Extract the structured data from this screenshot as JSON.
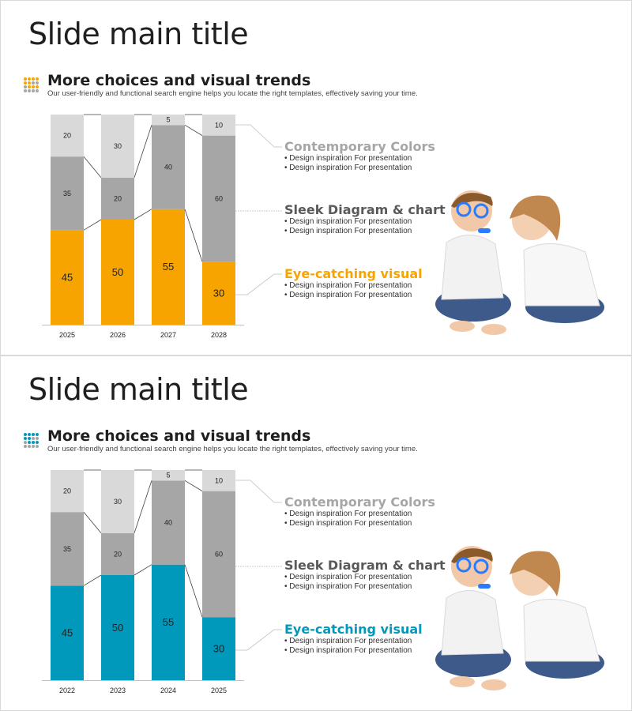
{
  "slides": [
    {
      "title": "Slide main title",
      "heading": "More choices and visual trends",
      "description": "Our user-friendly and functional search engine helps you locate the right templates, effectively saving your time.",
      "accent_color": "#f7a400",
      "dot_colors": [
        "#f7a400",
        "#f7a400",
        "#f7a400",
        "#f7a400",
        "#f7a400",
        "#f7a400",
        "#a6a6a6",
        "#a6a6a6",
        "#a6a6a6",
        "#f7a400",
        "#f7a400",
        "#f7a400",
        "#a6a6a6",
        "#a6a6a6",
        "#a6a6a6",
        "#a6a6a6"
      ],
      "categories": [
        {
          "title": "Contemporary Colors",
          "color": "#a6a6a6",
          "bullets": [
            "• Design inspiration For presentation",
            "• Design inspiration For presentation"
          ]
        },
        {
          "title": "Sleek Diagram & chart",
          "color": "#595959",
          "bullets": [
            "• Design inspiration For presentation",
            "• Design inspiration For presentation"
          ]
        },
        {
          "title": "Eye-catching visual",
          "color": "#f7a400",
          "bullets": [
            "• Design inspiration For presentation",
            "• Design inspiration For presentation"
          ]
        }
      ]
    },
    {
      "title": "Slide main title",
      "heading": "More choices and visual trends",
      "description": "Our user-friendly and functional search engine helps you locate the right templates, effectively saving your time.",
      "accent_color": "#0099bb",
      "dot_colors": [
        "#0099bb",
        "#0099bb",
        "#0099bb",
        "#0099bb",
        "#0099bb",
        "#0099bb",
        "#a6a6a6",
        "#a6a6a6",
        "#a6a6a6",
        "#0099bb",
        "#0099bb",
        "#0099bb",
        "#a6a6a6",
        "#a6a6a6",
        "#a6a6a6",
        "#a6a6a6"
      ],
      "categories": [
        {
          "title": "Contemporary Colors",
          "color": "#a6a6a6",
          "bullets": [
            "• Design inspiration For presentation",
            "• Design inspiration For presentation"
          ]
        },
        {
          "title": "Sleek Diagram & chart",
          "color": "#595959",
          "bullets": [
            "• Design inspiration For presentation",
            "• Design inspiration For presentation"
          ]
        },
        {
          "title": "Eye-catching visual",
          "color": "#0099bb",
          "bullets": [
            "• Design inspiration For presentation",
            "• Design inspiration For presentation"
          ]
        }
      ]
    }
  ],
  "chart_data": [
    {
      "type": "bar",
      "stacked": true,
      "categories": [
        "2025",
        "2026",
        "2027",
        "2028"
      ],
      "series": [
        {
          "values": [
            45,
            50,
            55,
            30
          ],
          "color": "#f7a400"
        },
        {
          "values": [
            35,
            20,
            40,
            60
          ],
          "color": "#a6a6a6"
        },
        {
          "values": [
            20,
            30,
            5,
            10
          ],
          "color": "#d9d9d9"
        }
      ],
      "ylim": [
        0,
        100
      ],
      "grid": false,
      "legend": "none"
    },
    {
      "type": "bar",
      "stacked": true,
      "categories": [
        "2022",
        "2023",
        "2024",
        "2025"
      ],
      "series": [
        {
          "values": [
            45,
            50,
            55,
            30
          ],
          "color": "#0099bb"
        },
        {
          "values": [
            35,
            20,
            40,
            60
          ],
          "color": "#a6a6a6"
        },
        {
          "values": [
            20,
            30,
            5,
            10
          ],
          "color": "#d9d9d9"
        }
      ],
      "ylim": [
        0,
        100
      ],
      "grid": false,
      "legend": "none"
    }
  ]
}
